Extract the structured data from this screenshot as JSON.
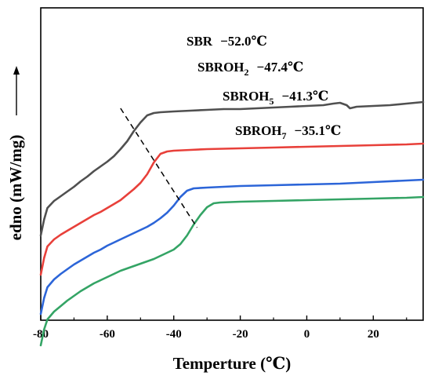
{
  "chart_data": {
    "type": "line",
    "xlabel": "Temperture (℃)",
    "ylabel": "edno (mW/mg)",
    "xlim": [
      -80,
      35
    ],
    "x_ticks": [
      "-80",
      "-60",
      "-40",
      "-20",
      "0",
      "20"
    ],
    "grid": false,
    "series": [
      {
        "name": "SBR",
        "color": "#505050",
        "tg": "−52.0℃",
        "x": [
          -80,
          -79,
          -78,
          -76,
          -74,
          -72,
          -70,
          -68,
          -66,
          -64,
          -62,
          -60,
          -58,
          -56,
          -54,
          -52,
          -50,
          -48,
          -46,
          -44,
          -40,
          -35,
          -30,
          -25,
          -20,
          -15,
          -10,
          -5,
          0,
          5,
          8,
          10,
          12,
          13,
          15,
          20,
          25,
          30,
          35
        ],
        "y": [
          300,
          280,
          265,
          256,
          250,
          244,
          238,
          231,
          225,
          218,
          212,
          206,
          199,
          190,
          180,
          167,
          156,
          147,
          144,
          143,
          142,
          141,
          140,
          139,
          139,
          138,
          137,
          136,
          135,
          134,
          132,
          131,
          134,
          138,
          136,
          135,
          134,
          132,
          130
        ]
      },
      {
        "name": "SBROH2",
        "color": "#e8403a",
        "tg": "−47.4℃",
        "x": [
          -80,
          -79,
          -78,
          -76,
          -74,
          -72,
          -70,
          -68,
          -66,
          -64,
          -62,
          -60,
          -58,
          -56,
          -54,
          -52,
          -50,
          -48,
          -46,
          -44,
          -42,
          -40,
          -35,
          -30,
          -20,
          -10,
          0,
          10,
          20,
          30,
          35
        ],
        "y": [
          350,
          329,
          314,
          305,
          299,
          294,
          289,
          284,
          279,
          274,
          270,
          265,
          260,
          255,
          248,
          241,
          233,
          222,
          207,
          196,
          193,
          192,
          191,
          190,
          189,
          188,
          187,
          186,
          185,
          184,
          183
        ]
      },
      {
        "name": "SBROH5",
        "color": "#2c65d8",
        "tg": "−41.3℃",
        "x": [
          -80,
          -79,
          -78,
          -76,
          -74,
          -72,
          -70,
          -68,
          -66,
          -64,
          -62,
          -60,
          -58,
          -56,
          -54,
          -52,
          -50,
          -48,
          -46,
          -44,
          -42,
          -40,
          -38,
          -36,
          -34,
          -30,
          -20,
          -10,
          0,
          10,
          20,
          30,
          35
        ],
        "y": [
          400,
          380,
          366,
          356,
          349,
          343,
          337,
          332,
          327,
          322,
          318,
          313,
          309,
          305,
          301,
          297,
          293,
          289,
          284,
          278,
          271,
          262,
          251,
          243,
          240,
          239,
          237,
          236,
          235,
          234,
          232,
          230,
          229
        ]
      },
      {
        "name": "SBROH7",
        "color": "#34a465",
        "tg": "−35.1℃",
        "x": [
          -80,
          -79,
          -78,
          -76,
          -74,
          -72,
          -70,
          -68,
          -66,
          -64,
          -62,
          -60,
          -58,
          -56,
          -54,
          -52,
          -50,
          -48,
          -46,
          -44,
          -42,
          -40,
          -38,
          -36,
          -34,
          -32,
          -30,
          -28,
          -26,
          -20,
          -10,
          0,
          10,
          20,
          30,
          35
        ],
        "y": [
          440,
          420,
          407,
          397,
          390,
          383,
          377,
          371,
          366,
          361,
          357,
          353,
          349,
          345,
          342,
          339,
          336,
          333,
          330,
          326,
          322,
          318,
          311,
          300,
          286,
          274,
          264,
          259,
          258,
          257,
          256,
          255,
          254,
          253,
          252,
          251
        ]
      }
    ],
    "annotations": [
      {
        "series": "SBR",
        "base": "SBR",
        "sub": "",
        "value": "−52.0℃"
      },
      {
        "series": "SBROH2",
        "base": "SBROH",
        "sub": "2",
        "value": "−47.4℃"
      },
      {
        "series": "SBROH5",
        "base": "SBROH",
        "sub": "5",
        "value": "−41.3℃"
      },
      {
        "series": "SBROH7",
        "base": "SBROH",
        "sub": "7",
        "value": "−35.1℃"
      }
    ],
    "tg_guide_line": {
      "style": "dashed",
      "from": {
        "x": -56,
        "series": "SBR"
      },
      "to": {
        "x": -33,
        "series": "SBROH7"
      }
    }
  }
}
